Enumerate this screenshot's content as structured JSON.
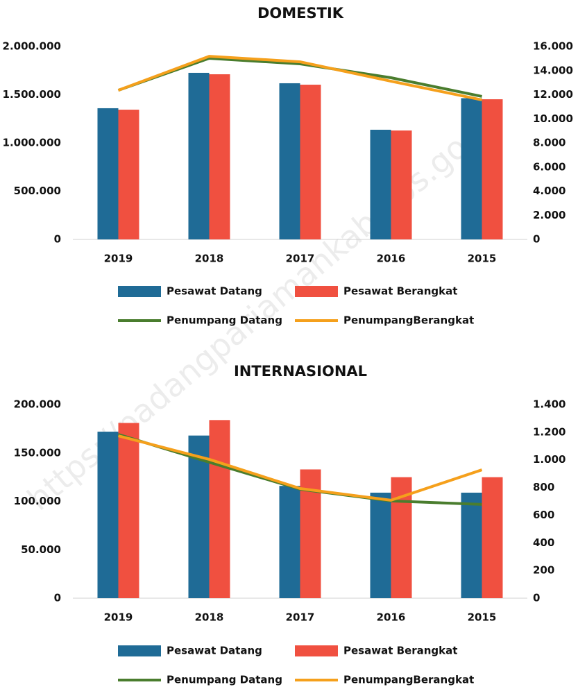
{
  "watermark": "https://padangpariamankab.bps.go.id",
  "chart_data": [
    {
      "type": "bar",
      "title": "DOMESTIK",
      "categories": [
        "2019",
        "2018",
        "2017",
        "2016",
        "2015"
      ],
      "series": [
        {
          "name": "Pesawat Datang",
          "color": "#1f6b96",
          "type": "bar",
          "values": [
            1360000,
            1727000,
            1619000,
            1137000,
            1464000
          ]
        },
        {
          "name": "Pesawat Berangkat",
          "color": "#f05040",
          "type": "bar",
          "values": [
            1345000,
            1712000,
            1604000,
            1129000,
            1453000
          ]
        },
        {
          "name": "Penumpang Datang",
          "color": "#4a7d2e",
          "type": "line",
          "axis": "y2",
          "values": [
            12370,
            15020,
            14560,
            13410,
            11860
          ]
        },
        {
          "name": "PenumpangBerangkat",
          "color": "#f5a01c",
          "type": "line",
          "axis": "y2",
          "values": [
            12370,
            15190,
            14730,
            13120,
            11570
          ]
        }
      ],
      "ylim": [
        0,
        2000000
      ],
      "yticks": [
        0,
        {
          "value": 500000,
          "label": "500.000"
        },
        {
          "value": 1000000,
          "label": "1.000.000"
        },
        {
          "value": 1500000,
          "label": "1.500.000"
        },
        {
          "value": 2000000,
          "label": "2.000.000"
        }
      ],
      "y2lim": [
        0,
        16000
      ],
      "y2ticks": [
        0,
        {
          "value": 2000,
          "label": "2.000"
        },
        {
          "value": 4000,
          "label": "4.000"
        },
        {
          "value": 6000,
          "label": "6.000"
        },
        {
          "value": 8000,
          "label": "8.000"
        },
        {
          "value": 10000,
          "label": "10.000"
        },
        {
          "value": 12000,
          "label": "12.000"
        },
        {
          "value": 14000,
          "label": "14.000"
        },
        {
          "value": 16000,
          "label": "16.000"
        }
      ],
      "legend": "bottom"
    },
    {
      "type": "bar",
      "title": "INTERNASIONAL",
      "categories": [
        "2019",
        "2018",
        "2017",
        "2016",
        "2015"
      ],
      "series": [
        {
          "name": "Pesawat Datang",
          "color": "#1f6b96",
          "type": "bar",
          "values": [
            172000,
            168000,
            116000,
            109000,
            109000
          ]
        },
        {
          "name": "Pesawat Berangkat",
          "color": "#f05040",
          "type": "bar",
          "values": [
            181000,
            184000,
            133000,
            125000,
            125000
          ]
        },
        {
          "name": "Penumpang Datang",
          "color": "#4a7d2e",
          "type": "line",
          "axis": "y2",
          "values": [
            1184,
            983,
            788,
            703,
            678
          ]
        },
        {
          "name": "PenumpangBerangkat",
          "color": "#f5a01c",
          "type": "line",
          "axis": "y2",
          "values": [
            1174,
            1004,
            793,
            708,
            928
          ]
        }
      ],
      "ylim": [
        0,
        200000
      ],
      "yticks": [
        0,
        {
          "value": 50000,
          "label": "50.000"
        },
        {
          "value": 100000,
          "label": "100.000"
        },
        {
          "value": 150000,
          "label": "150.000"
        },
        {
          "value": 200000,
          "label": "200.000"
        }
      ],
      "y2lim": [
        0,
        1400
      ],
      "y2ticks": [
        0,
        200,
        400,
        600,
        800,
        {
          "value": 1000,
          "label": "1.000"
        },
        {
          "value": 1200,
          "label": "1.200"
        },
        {
          "value": 1400,
          "label": "1.400"
        }
      ],
      "legend": "bottom"
    }
  ]
}
